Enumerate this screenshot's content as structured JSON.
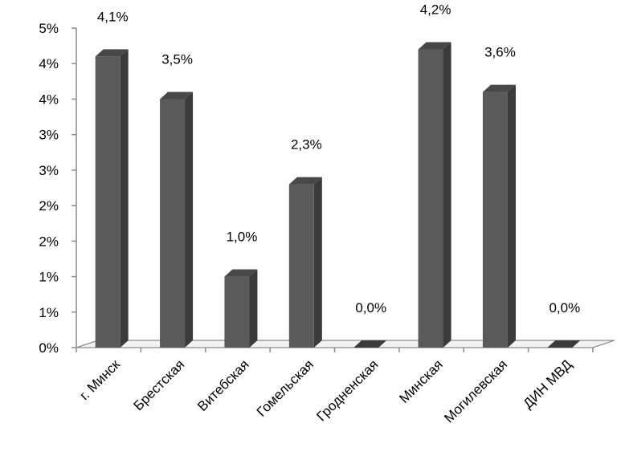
{
  "chart_data": {
    "type": "bar",
    "categories": [
      "г. Минск",
      "Брестская",
      "Витебская",
      "Гомельская",
      "Гродненская",
      "Минская",
      "Могилевская",
      "ДИН МВД"
    ],
    "values": [
      4.1,
      3.5,
      1.0,
      2.3,
      0.0,
      4.2,
      3.6,
      0.0
    ],
    "data_labels": [
      "4,1%",
      "3,5%",
      "1,0%",
      "2,3%",
      "0,0%",
      "4,2%",
      "3,6%",
      "0,0%"
    ],
    "y_tick_labels": [
      "0%",
      "1%",
      "1%",
      "2%",
      "2%",
      "3%",
      "3%",
      "4%",
      "4%",
      "5%"
    ],
    "ylim": [
      0,
      4.5
    ],
    "title": "",
    "xlabel": "",
    "ylabel": "",
    "grid": false,
    "legend": "none",
    "style": "3d-bar",
    "colors": {
      "bar_front": "#5a5a5a",
      "bar_side": "#3a3a3a",
      "bar_top": "#484848",
      "axis": "#8c8c8c",
      "floor": "#8c8c8c"
    }
  }
}
